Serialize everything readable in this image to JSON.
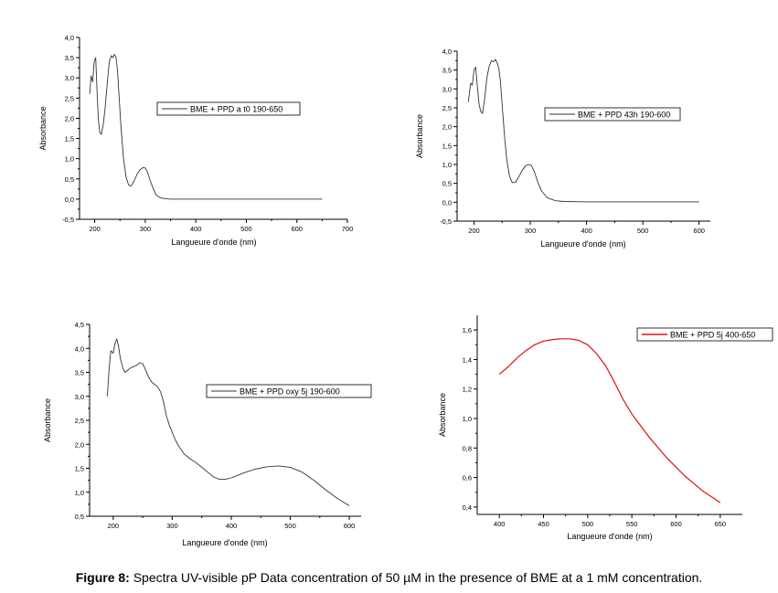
{
  "caption": {
    "label": "Figure 8:",
    "text": "Spectra UV-visible pP Data concentration of 50 µM in the presence of BME at a 1 mM concentration."
  },
  "chart_data": [
    {
      "type": "line",
      "xlabel": "Langueure d'onde (nm)",
      "ylabel": "Absorbance",
      "xlim": [
        170,
        700
      ],
      "ylim": [
        -0.5,
        4.0
      ],
      "xticks": [
        "200",
        "300",
        "400",
        "500",
        "600",
        "700"
      ],
      "yticks": [
        "-0,5",
        "0,0",
        "0,5",
        "1,0",
        "1,5",
        "2,0",
        "2,5",
        "3,0",
        "3,5",
        "4,0"
      ],
      "legend": {
        "label": "BME + PPD a t0 190-650",
        "position": "top-center"
      },
      "color": "#333333",
      "series": [
        {
          "name": "BME + PPD a t0 190-650",
          "x": [
            190,
            193,
            196,
            199,
            202,
            205,
            207,
            210,
            213,
            217,
            221,
            225,
            229,
            233,
            236,
            239,
            242,
            245,
            248,
            252,
            257,
            262,
            267,
            272,
            278,
            284,
            290,
            296,
            300,
            305,
            310,
            316,
            322,
            330,
            340,
            350,
            370,
            400,
            450,
            500,
            550,
            600,
            650
          ],
          "y": [
            2.6,
            3.05,
            2.9,
            3.4,
            3.5,
            2.6,
            2.0,
            1.65,
            1.6,
            1.85,
            2.3,
            2.9,
            3.4,
            3.55,
            3.5,
            3.58,
            3.52,
            3.2,
            2.6,
            1.8,
            1.0,
            0.55,
            0.35,
            0.32,
            0.45,
            0.62,
            0.73,
            0.78,
            0.77,
            0.65,
            0.45,
            0.25,
            0.1,
            0.03,
            0.01,
            0.0,
            0.0,
            0.0,
            0.0,
            0.0,
            0.0,
            0.0,
            0.0
          ]
        }
      ]
    },
    {
      "type": "line",
      "xlabel": "Langueure d'onde (nm)",
      "ylabel": "Absorbance",
      "xlim": [
        170,
        620
      ],
      "ylim": [
        -0.5,
        4.0
      ],
      "xticks": [
        "200",
        "300",
        "400",
        "500",
        "600"
      ],
      "yticks": [
        "-0,5",
        "0,0",
        "0,5",
        "1,0",
        "1,5",
        "2,0",
        "2,5",
        "3,0",
        "3,5",
        "4,0"
      ],
      "legend": {
        "label": "BME + PPD 43h 190-600",
        "position": "top-right"
      },
      "color": "#333333",
      "series": [
        {
          "name": "BME + PPD 43h 190-600",
          "x": [
            190,
            194,
            197,
            200,
            203,
            206,
            209,
            212,
            215,
            219,
            223,
            227,
            231,
            235,
            238,
            241,
            244,
            247,
            250,
            254,
            258,
            263,
            268,
            274,
            280,
            286,
            292,
            298,
            302,
            307,
            313,
            320,
            330,
            345,
            360,
            400,
            450,
            500,
            550,
            600
          ],
          "y": [
            2.65,
            3.15,
            3.1,
            3.5,
            3.58,
            3.05,
            2.6,
            2.4,
            2.35,
            2.75,
            3.3,
            3.6,
            3.75,
            3.72,
            3.78,
            3.7,
            3.55,
            3.2,
            2.6,
            1.8,
            1.15,
            0.7,
            0.52,
            0.53,
            0.68,
            0.85,
            0.97,
            1.0,
            0.97,
            0.82,
            0.55,
            0.3,
            0.12,
            0.04,
            0.02,
            0.01,
            0.01,
            0.01,
            0.01,
            0.01
          ]
        }
      ]
    },
    {
      "type": "line",
      "xlabel": "Langueure d'onde (nm)",
      "ylabel": "Absorbance",
      "xlim": [
        160,
        620
      ],
      "ylim": [
        0.5,
        4.5
      ],
      "xticks": [
        "200",
        "300",
        "400",
        "500",
        "600"
      ],
      "yticks": [
        "0,5",
        "1,0",
        "1,5",
        "2,0",
        "2,5",
        "3,0",
        "3,5",
        "4,0",
        "4,5"
      ],
      "legend": {
        "label": "BME + PPD oxy 5j 190-600",
        "position": "top-right"
      },
      "color": "#333333",
      "series": [
        {
          "name": "BME + PPD oxy 5j 190-600",
          "x": [
            190,
            193,
            196,
            200,
            203,
            206,
            209,
            212,
            216,
            220,
            225,
            230,
            235,
            240,
            245,
            250,
            255,
            260,
            265,
            270,
            275,
            280,
            285,
            290,
            295,
            300,
            305,
            310,
            320,
            330,
            340,
            350,
            360,
            370,
            380,
            390,
            400,
            420,
            440,
            460,
            480,
            500,
            520,
            540,
            560,
            580,
            600
          ],
          "y": [
            3.0,
            3.55,
            3.95,
            3.9,
            4.1,
            4.2,
            4.05,
            3.8,
            3.6,
            3.5,
            3.55,
            3.6,
            3.62,
            3.65,
            3.7,
            3.68,
            3.55,
            3.4,
            3.3,
            3.25,
            3.2,
            3.1,
            2.9,
            2.6,
            2.4,
            2.25,
            2.1,
            1.98,
            1.8,
            1.7,
            1.62,
            1.52,
            1.42,
            1.32,
            1.27,
            1.27,
            1.3,
            1.4,
            1.48,
            1.53,
            1.55,
            1.52,
            1.42,
            1.25,
            1.05,
            0.87,
            0.72
          ]
        }
      ]
    },
    {
      "type": "line",
      "xlabel": "Langueure d'onde (nm)",
      "ylabel": "Absorbance",
      "xlim": [
        375,
        675
      ],
      "ylim": [
        0.35,
        1.7
      ],
      "xticks": [
        "400",
        "450",
        "500",
        "550",
        "600",
        "650"
      ],
      "yticks": [
        "0,4",
        "0,6",
        "0,8",
        "1,0",
        "1,2",
        "1,4",
        "1,6"
      ],
      "legend": {
        "label": "BME + PPD 5j 400-650",
        "position": "top-right"
      },
      "color": "#dd1111",
      "series": [
        {
          "name": "BME + PPD 5j 400-650",
          "x": [
            400,
            410,
            420,
            430,
            440,
            450,
            460,
            470,
            480,
            490,
            500,
            510,
            520,
            530,
            540,
            550,
            560,
            570,
            580,
            590,
            600,
            610,
            620,
            630,
            640,
            650
          ],
          "y": [
            1.3,
            1.35,
            1.41,
            1.46,
            1.5,
            1.525,
            1.535,
            1.54,
            1.54,
            1.53,
            1.5,
            1.44,
            1.36,
            1.25,
            1.13,
            1.03,
            0.95,
            0.87,
            0.8,
            0.73,
            0.67,
            0.61,
            0.56,
            0.51,
            0.47,
            0.43
          ]
        }
      ]
    }
  ]
}
